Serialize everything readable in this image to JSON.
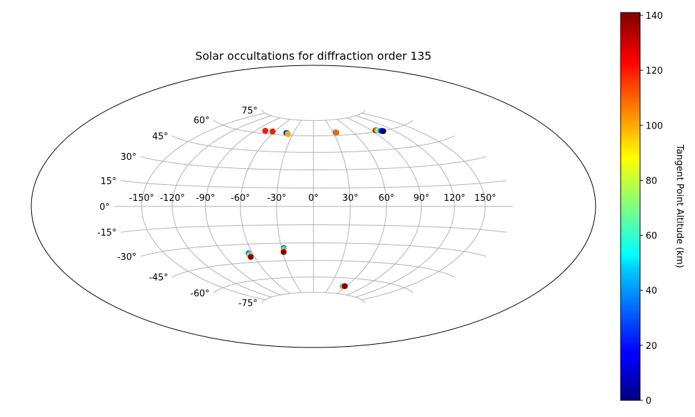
{
  "chart_data": {
    "type": "scatter",
    "projection": "hammer",
    "title": "Solar occultations for diffraction order 135",
    "grid": true,
    "lon_ticks": [
      -150,
      -120,
      -90,
      -60,
      -30,
      0,
      30,
      60,
      90,
      120,
      150
    ],
    "lon_tick_labels": [
      "-150°",
      "-120°",
      "-90°",
      "-60°",
      "-30°",
      "0°",
      "30°",
      "60°",
      "90°",
      "120°",
      "150°"
    ],
    "lat_ticks": [
      75,
      60,
      45,
      30,
      15,
      0,
      -15,
      -30,
      -45,
      -60,
      -75
    ],
    "lat_tick_labels": [
      "75°",
      "60°",
      "45°",
      "30°",
      "15°",
      "0°",
      "-15°",
      "-30°",
      "-45°",
      "-60°",
      "-75°"
    ],
    "colorbar": {
      "label": "Tangent Point Altitude (km)",
      "range": [
        0,
        141
      ],
      "ticks": [
        0,
        20,
        40,
        60,
        80,
        100,
        120,
        140
      ],
      "colormap": "jet"
    },
    "occultations": [
      {
        "lon": [
          -75,
          -75,
          -75,
          -75
        ],
        "lat": [
          62.3,
          62.3,
          62.4,
          62.4
        ],
        "altitude": [
          0,
          30,
          70,
          120
        ]
      },
      {
        "lon": [
          -63,
          -63,
          -63,
          -63
        ],
        "lat": [
          62.4,
          62.4,
          62.5,
          62.5
        ],
        "altitude": [
          0,
          40,
          80,
          120
        ]
      },
      {
        "lon": [
          -40.5,
          -39.5,
          -38.5,
          -37
        ],
        "lat": [
          62.0,
          61.9,
          61.6,
          61.0
        ],
        "altitude": [
          0,
          10,
          40,
          100
        ]
      },
      {
        "lon": [
          34,
          34.5,
          35
        ],
        "lat": [
          62.8,
          62.7,
          62.6
        ],
        "altitude": [
          0,
          60,
          110
        ]
      },
      {
        "lon": [
          96,
          97,
          98,
          99,
          100,
          101,
          102,
          103,
          104,
          105
        ],
        "lat": [
          61.2,
          61.2,
          61.1,
          60.9,
          60.7,
          60.5,
          60.2,
          60.0,
          59.8,
          59.7
        ],
        "altitude": [
          140,
          125,
          110,
          95,
          80,
          60,
          40,
          25,
          10,
          0
        ]
      },
      {
        "lon": [
          -64,
          -64,
          -64,
          -64
        ],
        "lat": [
          -37.5,
          -38.5,
          -39.5,
          -40.5
        ],
        "altitude": [
          30,
          60,
          100,
          140
        ]
      },
      {
        "lon": [
          -28,
          -28.2,
          -28.5,
          -29
        ],
        "lat": [
          -34.0,
          -35.0,
          -36.0,
          -37.5
        ],
        "altitude": [
          30,
          50,
          100,
          140
        ]
      },
      {
        "lon": [
          53,
          54,
          55,
          56,
          57
        ],
        "lat": [
          -67.8,
          -67.8,
          -67.7,
          -67.6,
          -67.5
        ],
        "altitude": [
          40,
          60,
          90,
          120,
          140
        ]
      }
    ]
  }
}
